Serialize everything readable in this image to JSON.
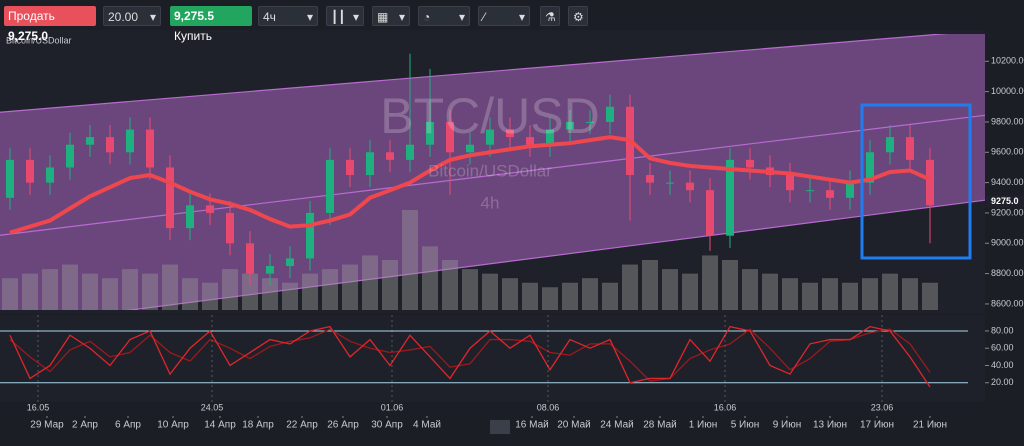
{
  "toolbar": {
    "sell_label": "Продать",
    "sell_price": "9,275.0",
    "quantity": "20.00",
    "buy_price": "9,275.5",
    "buy_label": "Купить",
    "timeframe": "4ч"
  },
  "chart_data": {
    "type": "candlestick",
    "symbol": "Bitcoin/USDollar",
    "watermark": {
      "title": "BTC/USD",
      "subtitle": "Bitcoin/USDollar",
      "interval": "4h"
    },
    "open": [
      9300,
      9550,
      9400,
      9500,
      9650,
      9700,
      9600,
      9750,
      9500,
      9100,
      9250,
      9200,
      9000,
      8800,
      8850,
      8900,
      9200,
      9550,
      9450,
      9600,
      9550,
      9650,
      9800,
      9600,
      9650,
      9750,
      9700,
      9650,
      9750,
      9800,
      9800,
      9900,
      9450,
      9400,
      9400,
      9350,
      9050,
      9550,
      9500,
      9450,
      9350,
      9350,
      9300,
      9400,
      9600,
      9700,
      9550
    ],
    "high": [
      9630,
      9630,
      9580,
      9730,
      9780,
      9780,
      9830,
      9830,
      9580,
      9330,
      9330,
      9280,
      9080,
      8930,
      8980,
      9280,
      9630,
      9630,
      9680,
      9680,
      10250,
      10150,
      9880,
      9730,
      9830,
      9830,
      9780,
      9830,
      9880,
      9880,
      9980,
      9980,
      9530,
      9480,
      9480,
      9430,
      9630,
      9630,
      9580,
      9530,
      9430,
      9430,
      9480,
      9680,
      9780,
      9780,
      9630
    ],
    "low": [
      9220,
      9320,
      9320,
      9420,
      9570,
      9520,
      9520,
      9420,
      9020,
      9020,
      9120,
      8920,
      8720,
      8720,
      8770,
      8820,
      9120,
      9370,
      9370,
      9470,
      9470,
      9570,
      9320,
      9520,
      9570,
      9620,
      9570,
      9570,
      9670,
      9720,
      9720,
      9150,
      9320,
      9320,
      9270,
      8950,
      8970,
      9420,
      9370,
      9270,
      9270,
      9220,
      9220,
      9320,
      9520,
      9470,
      9000
    ],
    "close": [
      9550,
      9400,
      9500,
      9650,
      9700,
      9600,
      9750,
      9500,
      9100,
      9250,
      9200,
      9000,
      8800,
      8850,
      8900,
      9200,
      9550,
      9450,
      9600,
      9550,
      9650,
      9800,
      9600,
      9650,
      9750,
      9700,
      9650,
      9750,
      9800,
      9800,
      9900,
      9450,
      9400,
      9400,
      9350,
      9050,
      9550,
      9500,
      9450,
      9350,
      9350,
      9300,
      9400,
      9600,
      9700,
      9550,
      9250
    ],
    "ma": [
      9070,
      9110,
      9150,
      9230,
      9310,
      9370,
      9430,
      9450,
      9400,
      9340,
      9290,
      9260,
      9220,
      9160,
      9110,
      9120,
      9150,
      9190,
      9300,
      9350,
      9400,
      9480,
      9550,
      9580,
      9600,
      9620,
      9640,
      9650,
      9660,
      9680,
      9700,
      9680,
      9560,
      9530,
      9510,
      9500,
      9490,
      9480,
      9470,
      9460,
      9440,
      9420,
      9400,
      9420,
      9470,
      9480,
      9420
    ],
    "volume": [
      35,
      40,
      45,
      50,
      40,
      35,
      45,
      40,
      50,
      35,
      30,
      45,
      40,
      35,
      30,
      40,
      45,
      50,
      60,
      55,
      110,
      70,
      55,
      45,
      40,
      35,
      30,
      25,
      30,
      35,
      30,
      50,
      55,
      45,
      40,
      60,
      55,
      45,
      40,
      35,
      30,
      35,
      30,
      35,
      40,
      35,
      30
    ],
    "channel": {
      "x": [
        -0.5,
        48.75
      ],
      "upper": [
        9864,
        10404
      ],
      "middle": [
        9053,
        9844
      ],
      "lower": [
        8449,
        9284
      ]
    },
    "up_color": "#1fb07f",
    "down_color": "#e84a6f",
    "ma_color": "#f0474f",
    "channel_color": "#b86bd0",
    "current_price": {
      "value": 9275,
      "label": "9275.0"
    },
    "ylim": [
      8560,
      10380
    ],
    "yticks": [
      {
        "value": 8600,
        "label": "8600.00"
      },
      {
        "value": 8800,
        "label": "8800.00"
      },
      {
        "value": 9000,
        "label": "9000.00"
      },
      {
        "value": 9200,
        "label": "9200.00"
      },
      {
        "value": 9400,
        "label": "9400.00"
      },
      {
        "value": 9600,
        "label": "9600.00"
      },
      {
        "value": 9800,
        "label": "9800.00"
      },
      {
        "value": 10000,
        "label": "10000.00"
      },
      {
        "value": 10200,
        "label": "10200.00"
      }
    ],
    "xticks": [
      {
        "value": 1.4,
        "label": "16.05"
      },
      {
        "value": 10.1,
        "label": "24.05"
      },
      {
        "value": 19.1,
        "label": "01.06"
      },
      {
        "value": 26.9,
        "label": "08.06"
      },
      {
        "value": 35.75,
        "label": "16.06"
      },
      {
        "value": 43.6,
        "label": "23.06"
      }
    ],
    "xticks2": [
      {
        "value": 1.85,
        "label": "29 Мар"
      },
      {
        "value": 3.75,
        "label": "2 Апр"
      },
      {
        "value": 5.9,
        "label": "6 Апр"
      },
      {
        "value": 8.15,
        "label": "10 Апр"
      },
      {
        "value": 10.5,
        "label": "14 Апр"
      },
      {
        "value": 12.4,
        "label": "18 Апр"
      },
      {
        "value": 14.6,
        "label": "22 Апр"
      },
      {
        "value": 16.65,
        "label": "26 Апр"
      },
      {
        "value": 18.85,
        "label": "30 Апр"
      },
      {
        "value": 20.85,
        "label": "4 Май"
      },
      {
        "value": 26.1,
        "label": "16 Май"
      },
      {
        "value": 28.2,
        "label": "20 Май"
      },
      {
        "value": 30.35,
        "label": "24 Май"
      },
      {
        "value": 32.5,
        "label": "28 Май"
      },
      {
        "value": 34.65,
        "label": "1 Июн"
      },
      {
        "value": 36.75,
        "label": "5 Июн"
      },
      {
        "value": 38.85,
        "label": "9 Июн"
      },
      {
        "value": 41.0,
        "label": "13 Июн"
      },
      {
        "value": 43.35,
        "label": "17 Июн"
      },
      {
        "value": 46.0,
        "label": "21 Июн"
      }
    ],
    "oscillator": {
      "k": [
        75,
        25,
        40,
        75,
        60,
        40,
        70,
        80,
        30,
        60,
        80,
        40,
        55,
        70,
        65,
        80,
        85,
        50,
        70,
        40,
        75,
        50,
        25,
        60,
        80,
        60,
        75,
        35,
        70,
        60,
        70,
        20,
        25,
        25,
        70,
        45,
        85,
        80,
        40,
        30,
        65,
        70,
        70,
        85,
        80,
        50,
        15
      ],
      "d": [
        70,
        50,
        33,
        58,
        68,
        50,
        55,
        75,
        55,
        45,
        70,
        60,
        48,
        62,
        68,
        72,
        82,
        68,
        60,
        55,
        58,
        62,
        38,
        42,
        70,
        70,
        68,
        55,
        52,
        65,
        65,
        45,
        22,
        25,
        48,
        58,
        65,
        82,
        60,
        35,
        48,
        68,
        70,
        78,
        82,
        65,
        32
      ],
      "k_color": "#e0262b",
      "d_color": "#9b1a1e",
      "level_color": "#a9d6ec",
      "ylim": [
        0,
        95
      ],
      "levels": [
        80,
        20
      ],
      "yticks": [
        {
          "value": 20,
          "label": "20.00"
        },
        {
          "value": 40,
          "label": "40.00"
        },
        {
          "value": 60,
          "label": "60.00"
        },
        {
          "value": 80,
          "label": "80.00"
        }
      ]
    }
  }
}
